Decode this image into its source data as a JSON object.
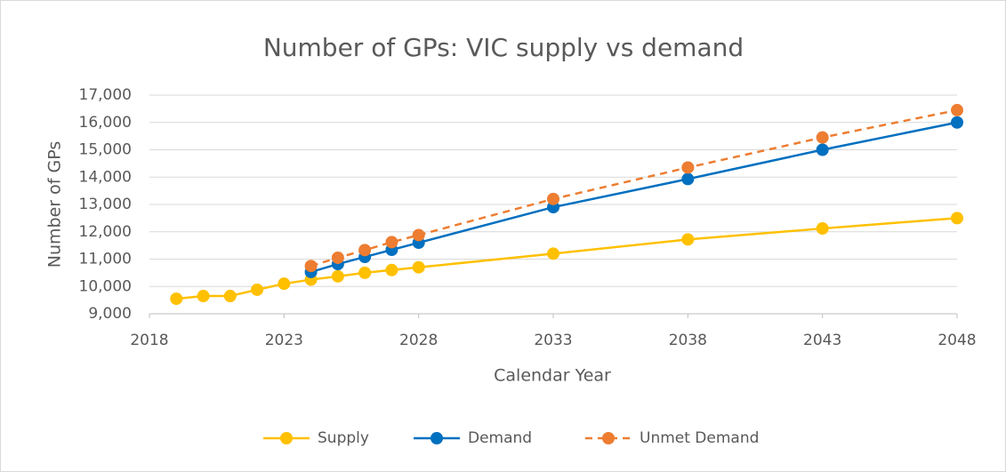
{
  "chart_data": {
    "type": "line",
    "title": "Number of GPs: VIC supply vs demand",
    "x_label": "Calendar Year",
    "y_label": "Number of GPs",
    "x": [
      2019,
      2020,
      2021,
      2022,
      2023,
      2024,
      2025,
      2026,
      2027,
      2028,
      2033,
      2038,
      2043,
      2048
    ],
    "series": [
      {
        "name": "Supply",
        "color": "#ffc000",
        "dashed": false,
        "values": [
          9550,
          9650,
          9650,
          9880,
          10100,
          10250,
          10370,
          10500,
          10600,
          10700,
          11200,
          11720,
          12120,
          12500
        ]
      },
      {
        "name": "Demand",
        "color": "#0070c0",
        "dashed": false,
        "values": [
          null,
          null,
          null,
          null,
          null,
          10530,
          10820,
          11080,
          11340,
          11600,
          12900,
          13930,
          15000,
          16000
        ]
      },
      {
        "name": "Unmet Demand",
        "color": "#ed7d31",
        "dashed": true,
        "values": [
          null,
          null,
          null,
          null,
          null,
          10750,
          11050,
          11330,
          11620,
          11880,
          13200,
          14350,
          15450,
          16450
        ]
      }
    ],
    "xlim": [
      2018,
      2048
    ],
    "xticks": [
      2018,
      2023,
      2028,
      2033,
      2038,
      2043,
      2048
    ],
    "ylim": [
      9000,
      17000
    ],
    "yticks": [
      {
        "value": 9000,
        "label": "9,000"
      },
      {
        "value": 10000,
        "label": "10,000"
      },
      {
        "value": 11000,
        "label": "11,000"
      },
      {
        "value": 12000,
        "label": "12,000"
      },
      {
        "value": 13000,
        "label": "13,000"
      },
      {
        "value": 14000,
        "label": "14,000"
      },
      {
        "value": 15000,
        "label": "15,000"
      },
      {
        "value": 16000,
        "label": "16,000"
      },
      {
        "value": 17000,
        "label": "17,000"
      }
    ],
    "grid": true,
    "legend": "bottom"
  }
}
